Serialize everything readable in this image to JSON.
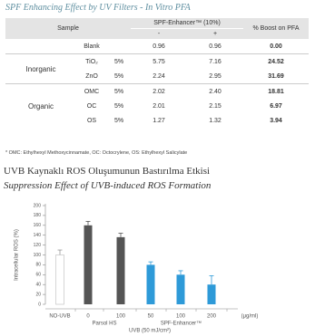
{
  "title": "SPF Enhancing Effect by UV Filters - In Vitro PFA",
  "table": {
    "header": {
      "sample": "Sample",
      "enhancer": "SPF-Enhancer™ (10%)",
      "minus": "-",
      "plus": "+",
      "boost": "% Boost on PFA"
    },
    "blank": {
      "sample": "Blank",
      "minus": "0.96",
      "plus": "0.96",
      "boost": "0.00"
    },
    "groups": [
      {
        "name": "Inorganic",
        "rows": [
          {
            "sample": "TiO₂",
            "conc": "5%",
            "minus": "5.75",
            "plus": "7.16",
            "boost": "24.52"
          },
          {
            "sample": "ZnO",
            "conc": "5%",
            "minus": "2.24",
            "plus": "2.95",
            "boost": "31.69"
          }
        ]
      },
      {
        "name": "Organic",
        "rows": [
          {
            "sample": "OMC",
            "conc": "5%",
            "minus": "2.02",
            "plus": "2.40",
            "boost": "18.81"
          },
          {
            "sample": "OC",
            "conc": "5%",
            "minus": "2.01",
            "plus": "2.15",
            "boost": "6.97"
          },
          {
            "sample": "OS",
            "conc": "5%",
            "minus": "1.27",
            "plus": "1.32",
            "boost": "3.94"
          }
        ]
      }
    ]
  },
  "footnote": "* OMC: Ethylhexyl Methoxycinnamate, OC: Octocrylene, OS: Ethylhexyl Salicylate",
  "section_title": "UVB Kaynaklı ROS Oluşumunun Bastırılma Etkisi",
  "section_subtitle": "Suppression Effect of UVB-induced ROS Formation",
  "chart_data": {
    "type": "bar",
    "categories": [
      "NO-UVB",
      "0",
      "100",
      "50",
      "100",
      "200"
    ],
    "values": [
      100,
      160,
      136,
      80,
      60,
      40
    ],
    "errors": [
      10,
      8,
      8,
      6,
      8,
      18
    ],
    "colors": [
      "#ffffff",
      "#555555",
      "#555555",
      "#2e9ad8",
      "#2e9ad8",
      "#2e9ad8"
    ],
    "groups": [
      "Parsol HS",
      "SPF-Enhancer™"
    ],
    "x_unit": "(μg/ml)",
    "xlabel": "UVB (50 mJ/cm²)",
    "ylabel": "Intracellular ROS (%)",
    "ylim": [
      0,
      200
    ],
    "yticks": [
      0,
      20,
      40,
      60,
      80,
      100,
      120,
      140,
      160,
      180,
      200
    ]
  }
}
